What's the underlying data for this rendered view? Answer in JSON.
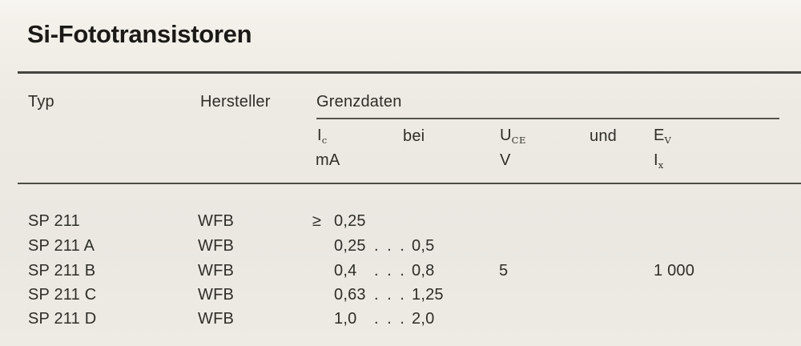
{
  "page": {
    "title": "Si-Fototransistoren"
  },
  "colors": {
    "paper": "#edeae3",
    "ink": "#2e2d27",
    "rule": "#45443e"
  },
  "table": {
    "headers": {
      "typ": "Typ",
      "hersteller": "Hersteller",
      "grenzdaten": "Grenzdaten"
    },
    "subheaders": {
      "ic": {
        "base": "I",
        "sub": "c",
        "unit": "mA"
      },
      "bei": "bei",
      "uce": {
        "base": "U",
        "sub": "CE",
        "unit": "V"
      },
      "und": "und",
      "ev": {
        "base": "E",
        "sub": "V"
      },
      "ev_unit": {
        "base": "I",
        "sub": "x"
      }
    },
    "rows": [
      {
        "typ": "SP 211",
        "hersteller": "WFB",
        "ic_prefix": "≥",
        "ic_min": "0,25",
        "ic_dots": "",
        "ic_max": "",
        "uce": "",
        "ev": ""
      },
      {
        "typ": "SP 211 A",
        "hersteller": "WFB",
        "ic_prefix": "",
        "ic_min": "0,25",
        "ic_dots": ". . .",
        "ic_max": "0,5",
        "uce": "",
        "ev": ""
      },
      {
        "typ": "SP 211 B",
        "hersteller": "WFB",
        "ic_prefix": "",
        "ic_min": "0,4",
        "ic_dots": ". . .",
        "ic_max": "0,8",
        "uce": "5",
        "ev": "1 000"
      },
      {
        "typ": "SP 211 C",
        "hersteller": "WFB",
        "ic_prefix": "",
        "ic_min": "0,63",
        "ic_dots": ". . .",
        "ic_max": "1,25",
        "uce": "",
        "ev": ""
      },
      {
        "typ": "SP 211 D",
        "hersteller": "WFB",
        "ic_prefix": "",
        "ic_min": "1,0",
        "ic_dots": ". . .",
        "ic_max": "2,0",
        "uce": "",
        "ev": ""
      }
    ]
  }
}
